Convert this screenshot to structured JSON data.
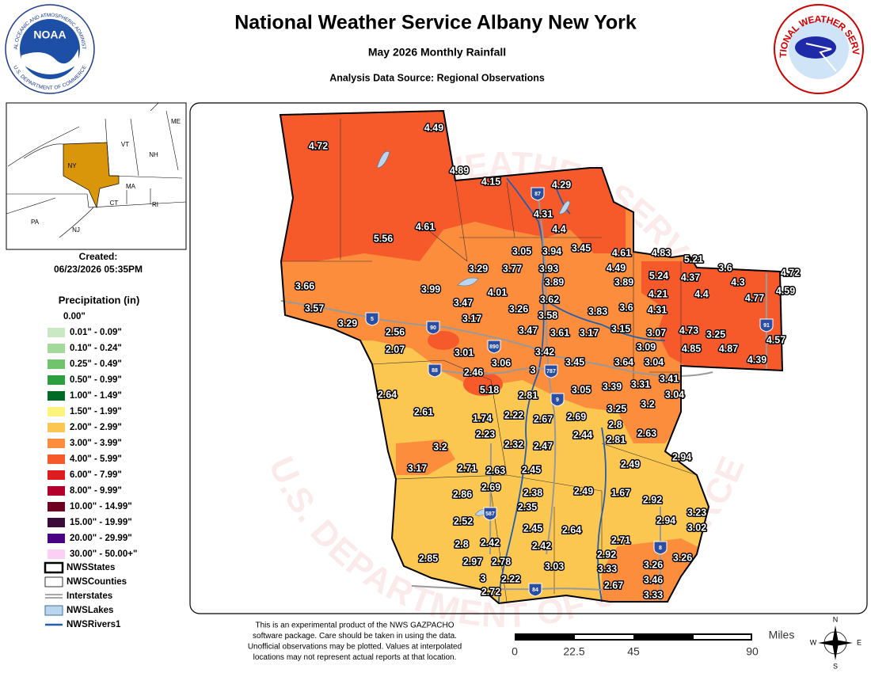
{
  "header": {
    "title": "National Weather Service Albany New York",
    "subtitle": "May 2026 Monthly Rainfall",
    "source": "Analysis Data Source: Regional Observations"
  },
  "logos": {
    "noaa": "NOAA",
    "noaa_ring_top": "NATIONAL OCEANIC AND ATMOSPHERIC ADMINISTRATION",
    "noaa_ring_bottom": "U.S. DEPARTMENT OF COMMERCE",
    "nws_ring": "NATIONAL WEATHER SERVICE"
  },
  "inset": {
    "states": [
      "ME",
      "VT",
      "NH",
      "NY",
      "MA",
      "CT",
      "RI",
      "PA",
      "NJ"
    ]
  },
  "created": {
    "label": "Created:",
    "timestamp": "06/23/2026 05:35PM"
  },
  "legend": {
    "title": "Precipitation (in)",
    "items": [
      {
        "label": "0.00\"",
        "color": "#ffffff"
      },
      {
        "label": "0.01\" - 0.09\"",
        "color": "#c9e9c4"
      },
      {
        "label": "0.10\" - 0.24\"",
        "color": "#a3d99b"
      },
      {
        "label": "0.25\" - 0.49\"",
        "color": "#72c46c"
      },
      {
        "label": "0.50\" - 0.99\"",
        "color": "#2e9f40"
      },
      {
        "label": "1.00\" - 1.49\"",
        "color": "#006b27"
      },
      {
        "label": "1.50\" - 1.99\"",
        "color": "#fdf37f"
      },
      {
        "label": "2.00\" - 2.99\"",
        "color": "#fcc751"
      },
      {
        "label": "3.00\" - 3.99\"",
        "color": "#fb8d3d"
      },
      {
        "label": "4.00\" - 5.99\"",
        "color": "#f65a2b"
      },
      {
        "label": "6.00\" - 7.99\"",
        "color": "#dd1d1e"
      },
      {
        "label": "8.00\" - 9.99\"",
        "color": "#b3002d"
      },
      {
        "label": "10.00\" - 14.99\"",
        "color": "#6d0022"
      },
      {
        "label": "15.00\" - 19.99\"",
        "color": "#3a0a39"
      },
      {
        "label": "20.00\" - 29.99\"",
        "color": "#4b0082"
      },
      {
        "label": "30.00\" - 50.00+\"",
        "color": "#fdcff4"
      }
    ],
    "layers": [
      "NWSStates",
      "NWSCounties",
      "Interstates",
      "NWSLakes",
      "NWSRivers1"
    ]
  },
  "map": {
    "stations": [
      4.72,
      4.49,
      4.89,
      4.15,
      4.29,
      4.31,
      4.4,
      4.61,
      5.56,
      3.05,
      3.94,
      3.45,
      4.61,
      4.83,
      5.21,
      3.29,
      3.77,
      3.93,
      4.49,
      3.6,
      4.72,
      3.66,
      3.99,
      4.01,
      3.89,
      3.89,
      5.24,
      4.37,
      4.3,
      4.59,
      3.47,
      3.62,
      4.21,
      4.4,
      4.77,
      3.57,
      3.26,
      3.58,
      3.83,
      3.6,
      4.31,
      3.29,
      3.17,
      2.56,
      3.47,
      3.61,
      3.17,
      3.15,
      3.07,
      4.73,
      3.25,
      4.57,
      2.07,
      3.01,
      3.42,
      3.09,
      4.85,
      4.87,
      3.06,
      3,
      3.45,
      3.64,
      3.04,
      4.39,
      2.46,
      3.41,
      5.18,
      2.81,
      3.05,
      3.39,
      3.31,
      3.04,
      2.64,
      3.2,
      3.25,
      2.61,
      1.74,
      2.22,
      2.67,
      2.69,
      2.8,
      2.23,
      2.44,
      2.81,
      2.63,
      2.32,
      2.47,
      3.2,
      2.94,
      2.49,
      3.17,
      2.71,
      2.63,
      2.45,
      2.69,
      2.38,
      2.49,
      1.67,
      2.92,
      2.86,
      2.35,
      3.23,
      2.52,
      2.94,
      3.02,
      2.45,
      2.64,
      2.71,
      2.8,
      2.42,
      2.42,
      2.92,
      3.26,
      2.85,
      2.97,
      2.78,
      3.26,
      3.03,
      3.33,
      3,
      2.22,
      3.46,
      2.67,
      2.72,
      3.33
    ],
    "interstates": [
      "87",
      "5",
      "90",
      "890",
      "88",
      "787",
      "9",
      "91",
      "587",
      "8",
      "84"
    ]
  },
  "footer": {
    "disclaimer": [
      "This is an experimental product of the NWS GAZPACHO",
      "software package. Care should be taken in using the data.",
      "Unofficial observations may be plotted. Values at interpolated",
      "locations may not represent actual reports at that location."
    ],
    "scale": {
      "unit": "Miles",
      "ticks": [
        0,
        22.5,
        45,
        90
      ]
    },
    "compass": [
      "N",
      "S",
      "E",
      "W"
    ]
  }
}
